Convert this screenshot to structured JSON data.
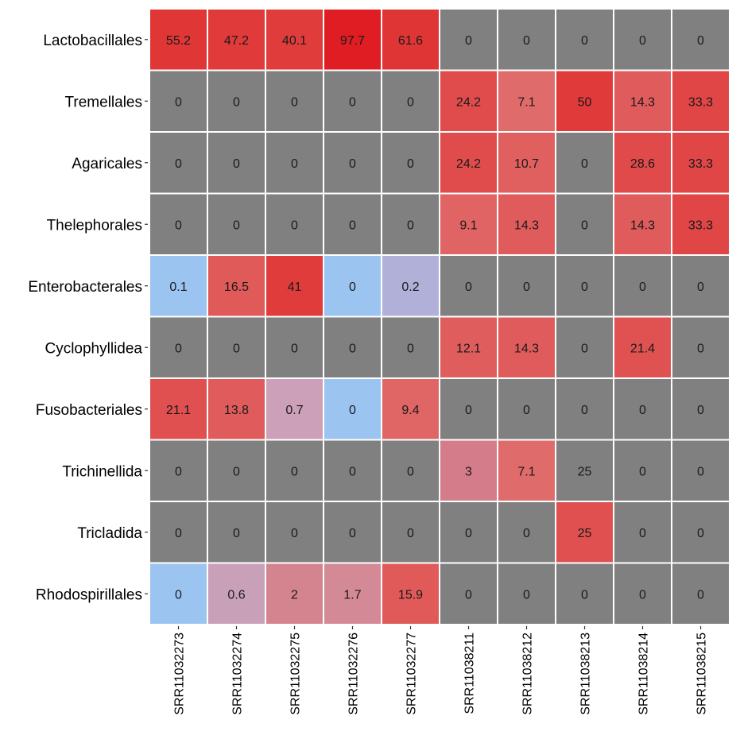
{
  "chart_data": {
    "type": "heatmap",
    "title": "",
    "xlabel": "",
    "ylabel": "",
    "rows": [
      "Lactobacillales",
      "Tremellales",
      "Agaricales",
      "Thelephorales",
      "Enterobacterales",
      "Cyclophyllidea",
      "Fusobacteriales",
      "Trichinellida",
      "Tricladida",
      "Rhodospirillales"
    ],
    "columns": [
      "SRR11032273",
      "SRR11032274",
      "SRR11032275",
      "SRR11032276",
      "SRR11032277",
      "SRR11038211",
      "SRR11038212",
      "SRR11038213",
      "SRR11038214",
      "SRR11038215"
    ],
    "values": [
      [
        55.2,
        47.2,
        40.1,
        97.7,
        61.6,
        0,
        0,
        0,
        0,
        0
      ],
      [
        0,
        0,
        0,
        0,
        0,
        24.2,
        7.1,
        50,
        14.3,
        33.3
      ],
      [
        0,
        0,
        0,
        0,
        0,
        24.2,
        10.7,
        0,
        28.6,
        33.3
      ],
      [
        0,
        0,
        0,
        0,
        0,
        9.1,
        14.3,
        0,
        14.3,
        33.3
      ],
      [
        0.1,
        16.5,
        41,
        0,
        0.2,
        0,
        0,
        0,
        0,
        0
      ],
      [
        0,
        0,
        0,
        0,
        0,
        12.1,
        14.3,
        0,
        21.4,
        0
      ],
      [
        21.1,
        13.8,
        0.7,
        0,
        9.4,
        0,
        0,
        0,
        0,
        0
      ],
      [
        0,
        0,
        0,
        0,
        0,
        3,
        7.1,
        25,
        0,
        0
      ],
      [
        0,
        0,
        0,
        0,
        0,
        0,
        0,
        25,
        0,
        0
      ],
      [
        0,
        0.6,
        2,
        1.7,
        15.9,
        0,
        0,
        0,
        0,
        0
      ]
    ],
    "cell_fills": [
      [
        "#e03636",
        "#e03a3a",
        "#e13c3c",
        "#e01d22",
        "#e03535",
        "#808080",
        "#808080",
        "#808080",
        "#808080",
        "#808080"
      ],
      [
        "#808080",
        "#808080",
        "#808080",
        "#808080",
        "#808080",
        "#e04c4c",
        "#e06b6b",
        "#e03a3a",
        "#e05c5c",
        "#e04646"
      ],
      [
        "#808080",
        "#808080",
        "#808080",
        "#808080",
        "#808080",
        "#e04c4c",
        "#e06060",
        "#808080",
        "#e04a4a",
        "#e04646"
      ],
      [
        "#808080",
        "#808080",
        "#808080",
        "#808080",
        "#808080",
        "#e06464",
        "#e05c5c",
        "#808080",
        "#e05c5c",
        "#e04646"
      ],
      [
        "#9cc4f0",
        "#e05a5a",
        "#e03c3c",
        "#9cc4f0",
        "#b0b0d8",
        "#808080",
        "#808080",
        "#808080",
        "#808080",
        "#808080"
      ],
      [
        "#808080",
        "#808080",
        "#808080",
        "#808080",
        "#808080",
        "#e05d5d",
        "#e05c5c",
        "#808080",
        "#e05252",
        "#808080"
      ],
      [
        "#e05050",
        "#e05c5c",
        "#cca0b8",
        "#9cc4f0",
        "#e06565",
        "#808080",
        "#808080",
        "#808080",
        "#808080",
        "#808080"
      ],
      [
        "#808080",
        "#808080",
        "#808080",
        "#808080",
        "#808080",
        "#d47c8a",
        "#e06b6b",
        "#808080",
        "#808080",
        "#808080"
      ],
      [
        "#808080",
        "#808080",
        "#808080",
        "#808080",
        "#808080",
        "#808080",
        "#808080",
        "#e05050",
        "#808080",
        "#808080"
      ],
      [
        "#9cc4f0",
        "#c8a0b8",
        "#d4848e",
        "#d48a96",
        "#e05a5a",
        "#808080",
        "#808080",
        "#808080",
        "#808080",
        "#808080"
      ]
    ],
    "legend": "none",
    "grid": false
  }
}
